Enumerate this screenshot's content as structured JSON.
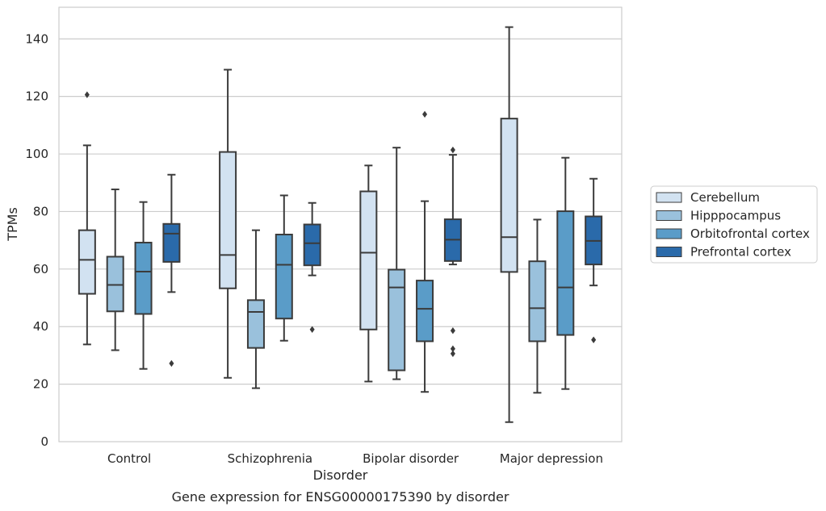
{
  "chart_data": {
    "type": "boxplot",
    "xlabel": "Disorder",
    "ylabel": "TPMs",
    "ylim": [
      0,
      151
    ],
    "yticks": [
      0,
      20,
      40,
      60,
      80,
      100,
      120,
      140
    ],
    "grid": true,
    "legend_position": "right",
    "categories": [
      "Control",
      "Schizophrenia",
      "Bipolar disorder",
      "Major depression"
    ],
    "series": [
      {
        "name": "Cerebellum",
        "color": "#d2e2f1",
        "boxes": [
          {
            "whisker_low": 33.8,
            "q1": 51.4,
            "median": 63.2,
            "q3": 73.5,
            "whisker_high": 103,
            "outliers": [
              120.6
            ]
          },
          {
            "whisker_low": 22.2,
            "q1": 53.3,
            "median": 64.9,
            "q3": 100.7,
            "whisker_high": 129.3,
            "outliers": []
          },
          {
            "whisker_low": 20.9,
            "q1": 39,
            "median": 65.7,
            "q3": 87,
            "whisker_high": 96,
            "outliers": []
          },
          {
            "whisker_low": 6.8,
            "q1": 59,
            "median": 71.1,
            "q3": 112.3,
            "whisker_high": 144.1,
            "outliers": []
          }
        ]
      },
      {
        "name": "Hipppocampus",
        "color": "#9ac1dc",
        "boxes": [
          {
            "whisker_low": 31.8,
            "q1": 45.3,
            "median": 54.5,
            "q3": 64.3,
            "whisker_high": 87.7,
            "outliers": []
          },
          {
            "whisker_low": 18.6,
            "q1": 32.6,
            "median": 45.1,
            "q3": 49.2,
            "whisker_high": 73.5,
            "outliers": []
          },
          {
            "whisker_low": 21.7,
            "q1": 24.8,
            "median": 53.6,
            "q3": 59.8,
            "whisker_high": 102.2,
            "outliers": []
          },
          {
            "whisker_low": 17,
            "q1": 34.9,
            "median": 46.4,
            "q3": 62.7,
            "whisker_high": 77.2,
            "outliers": []
          }
        ]
      },
      {
        "name": "Orbitofrontal cortex",
        "color": "#5a9cc8",
        "boxes": [
          {
            "whisker_low": 25.3,
            "q1": 44.4,
            "median": 59.1,
            "q3": 69.2,
            "whisker_high": 83.3,
            "outliers": []
          },
          {
            "whisker_low": 35.1,
            "q1": 42.8,
            "median": 61.5,
            "q3": 72,
            "whisker_high": 85.6,
            "outliers": []
          },
          {
            "whisker_low": 17.3,
            "q1": 34.9,
            "median": 46.2,
            "q3": 56,
            "whisker_high": 83.6,
            "outliers": []
          },
          {
            "whisker_low": 18.3,
            "q1": 37.1,
            "median": 53.6,
            "q3": 80.1,
            "whisker_high": 98.7,
            "outliers": []
          }
        ]
      },
      {
        "name": "Prefrontal cortex",
        "color": "#2a6aaa",
        "boxes": [
          {
            "whisker_low": 52,
            "q1": 62.5,
            "median": 72.3,
            "q3": 75.7,
            "whisker_high": 92.8,
            "outliers": [
              27.2
            ]
          },
          {
            "whisker_low": 57.8,
            "q1": 61.3,
            "median": 69,
            "q3": 75.5,
            "whisker_high": 83,
            "outliers": [
              39
            ]
          },
          {
            "whisker_low": 61.6,
            "q1": 62.8,
            "median": 70.2,
            "q3": 77.3,
            "whisker_high": 99.7,
            "outliers": [
              101.4,
              38.6,
              32.3,
              30.6
            ]
          },
          {
            "whisker_low": 54.3,
            "q1": 61.6,
            "median": 69.8,
            "q3": 78.3,
            "whisker_high": 91.4,
            "outliers": [
              35.4
            ]
          }
        ]
      }
    ],
    "extra_outliers": [
      {
        "category": "Bipolar disorder",
        "series": "Orbitofrontal cortex",
        "value": 113.8
      }
    ]
  },
  "caption": "Gene expression for ENSG00000175390 by disorder"
}
